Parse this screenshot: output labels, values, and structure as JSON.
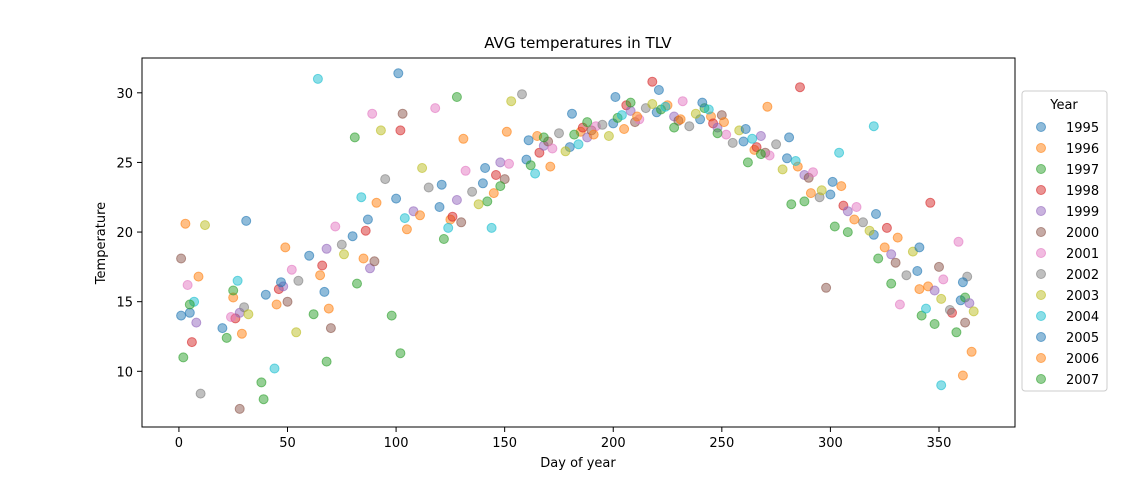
{
  "chart_data": {
    "type": "scatter",
    "title": "AVG temperatures in TLV",
    "xlabel": "Day of year",
    "ylabel": "Temperature",
    "xlim": [
      -17,
      385
    ],
    "ylim": [
      6,
      32.5
    ],
    "xticks": [
      0,
      50,
      100,
      150,
      200,
      250,
      300,
      350
    ],
    "yticks": [
      10,
      15,
      20,
      25,
      30
    ],
    "grid": false,
    "legend": {
      "title": "Year",
      "placement": "right"
    },
    "point_alpha": 0.5,
    "series": [
      {
        "name": "1995",
        "color": "#1f77b4",
        "points": [
          [
            5,
            14.2
          ],
          [
            20,
            13.1
          ],
          [
            40,
            15.5
          ],
          [
            60,
            18.3
          ],
          [
            80,
            19.7
          ],
          [
            100,
            22.4
          ],
          [
            120,
            21.8
          ],
          [
            140,
            23.5
          ],
          [
            160,
            25.2
          ],
          [
            180,
            26.1
          ],
          [
            200,
            27.8
          ],
          [
            220,
            28.6
          ],
          [
            240,
            28.1
          ],
          [
            260,
            26.5
          ],
          [
            280,
            25.3
          ],
          [
            300,
            22.7
          ],
          [
            320,
            19.8
          ],
          [
            340,
            17.2
          ],
          [
            360,
            15.1
          ]
        ]
      },
      {
        "name": "1996",
        "color": "#ff7f0e",
        "points": [
          [
            3,
            20.6
          ],
          [
            25,
            15.3
          ],
          [
            45,
            14.8
          ],
          [
            65,
            16.9
          ],
          [
            85,
            18.1
          ],
          [
            105,
            20.2
          ],
          [
            125,
            20.9
          ],
          [
            145,
            22.8
          ],
          [
            165,
            26.9
          ],
          [
            185,
            27.2
          ],
          [
            205,
            27.4
          ],
          [
            225,
            29.1
          ],
          [
            245,
            28.3
          ],
          [
            265,
            25.9
          ],
          [
            285,
            24.7
          ],
          [
            305,
            23.3
          ],
          [
            325,
            18.9
          ],
          [
            345,
            16.1
          ],
          [
            365,
            11.4
          ]
        ]
      },
      {
        "name": "1997",
        "color": "#2ca02c",
        "points": [
          [
            2,
            11.0
          ],
          [
            22,
            12.4
          ],
          [
            39,
            8.0
          ],
          [
            62,
            14.1
          ],
          [
            82,
            16.3
          ],
          [
            102,
            11.3
          ],
          [
            122,
            19.5
          ],
          [
            142,
            22.2
          ],
          [
            162,
            24.8
          ],
          [
            182,
            27.0
          ],
          [
            202,
            28.2
          ],
          [
            222,
            28.8
          ],
          [
            242,
            28.9
          ],
          [
            262,
            25.0
          ],
          [
            282,
            22.0
          ],
          [
            302,
            20.4
          ],
          [
            322,
            18.1
          ],
          [
            342,
            14.0
          ],
          [
            362,
            15.3
          ]
        ]
      },
      {
        "name": "1998",
        "color": "#d62728",
        "points": [
          [
            6,
            12.1
          ],
          [
            26,
            13.8
          ],
          [
            46,
            15.9
          ],
          [
            66,
            17.6
          ],
          [
            86,
            20.1
          ],
          [
            102,
            27.3
          ],
          [
            126,
            21.1
          ],
          [
            146,
            24.1
          ],
          [
            166,
            25.7
          ],
          [
            186,
            27.5
          ],
          [
            206,
            29.1
          ],
          [
            218,
            30.8
          ],
          [
            246,
            27.8
          ],
          [
            266,
            26.1
          ],
          [
            286,
            30.4
          ],
          [
            306,
            21.9
          ],
          [
            326,
            20.3
          ],
          [
            346,
            22.1
          ],
          [
            356,
            14.2
          ]
        ]
      },
      {
        "name": "1999",
        "color": "#9467bd",
        "points": [
          [
            8,
            13.5
          ],
          [
            28,
            14.2
          ],
          [
            48,
            16.1
          ],
          [
            68,
            18.8
          ],
          [
            88,
            17.4
          ],
          [
            108,
            21.5
          ],
          [
            128,
            22.3
          ],
          [
            148,
            25.0
          ],
          [
            168,
            26.2
          ],
          [
            188,
            26.8
          ],
          [
            208,
            28.7
          ],
          [
            228,
            28.3
          ],
          [
            248,
            27.5
          ],
          [
            268,
            26.9
          ],
          [
            288,
            24.1
          ],
          [
            308,
            21.5
          ],
          [
            328,
            18.4
          ],
          [
            348,
            15.8
          ],
          [
            364,
            14.9
          ]
        ]
      },
      {
        "name": "2000",
        "color": "#8c564b",
        "points": [
          [
            1,
            18.1
          ],
          [
            28,
            7.3
          ],
          [
            50,
            15.0
          ],
          [
            70,
            13.1
          ],
          [
            90,
            17.9
          ],
          [
            103,
            28.5
          ],
          [
            130,
            20.7
          ],
          [
            150,
            23.8
          ],
          [
            170,
            26.5
          ],
          [
            190,
            27.3
          ],
          [
            210,
            27.9
          ],
          [
            230,
            28.0
          ],
          [
            250,
            28.4
          ],
          [
            270,
            25.7
          ],
          [
            290,
            23.9
          ],
          [
            298,
            16.0
          ],
          [
            330,
            17.8
          ],
          [
            350,
            17.5
          ],
          [
            362,
            13.5
          ]
        ]
      },
      {
        "name": "2001",
        "color": "#e377c2",
        "points": [
          [
            4,
            16.2
          ],
          [
            24,
            13.9
          ],
          [
            52,
            17.3
          ],
          [
            72,
            20.4
          ],
          [
            89,
            28.5
          ],
          [
            118,
            28.9
          ],
          [
            132,
            24.4
          ],
          [
            152,
            24.9
          ],
          [
            172,
            26.0
          ],
          [
            192,
            27.6
          ],
          [
            212,
            28.1
          ],
          [
            232,
            29.4
          ],
          [
            252,
            27.0
          ],
          [
            272,
            25.5
          ],
          [
            292,
            24.3
          ],
          [
            312,
            21.8
          ],
          [
            332,
            14.8
          ],
          [
            352,
            16.6
          ],
          [
            359,
            19.3
          ]
        ]
      },
      {
        "name": "2002",
        "color": "#7f7f7f",
        "points": [
          [
            10,
            8.4
          ],
          [
            30,
            14.6
          ],
          [
            55,
            16.5
          ],
          [
            75,
            19.1
          ],
          [
            95,
            23.8
          ],
          [
            115,
            23.2
          ],
          [
            135,
            22.9
          ],
          [
            158,
            29.9
          ],
          [
            175,
            27.1
          ],
          [
            195,
            27.7
          ],
          [
            215,
            28.9
          ],
          [
            235,
            27.6
          ],
          [
            255,
            26.4
          ],
          [
            275,
            26.3
          ],
          [
            295,
            22.5
          ],
          [
            315,
            20.7
          ],
          [
            335,
            16.9
          ],
          [
            355,
            14.4
          ],
          [
            363,
            16.8
          ]
        ]
      },
      {
        "name": "2003",
        "color": "#bcbd22",
        "points": [
          [
            12,
            20.5
          ],
          [
            32,
            14.1
          ],
          [
            54,
            12.8
          ],
          [
            76,
            18.4
          ],
          [
            93,
            27.3
          ],
          [
            112,
            24.6
          ],
          [
            138,
            22.0
          ],
          [
            153,
            29.4
          ],
          [
            178,
            25.8
          ],
          [
            198,
            26.9
          ],
          [
            218,
            29.2
          ],
          [
            238,
            28.5
          ],
          [
            258,
            27.3
          ],
          [
            278,
            24.5
          ],
          [
            296,
            23.0
          ],
          [
            318,
            20.1
          ],
          [
            338,
            18.6
          ],
          [
            351,
            15.2
          ],
          [
            366,
            14.3
          ]
        ]
      },
      {
        "name": "2004",
        "color": "#17becf",
        "points": [
          [
            7,
            15.0
          ],
          [
            27,
            16.5
          ],
          [
            44,
            10.2
          ],
          [
            64,
            31.0
          ],
          [
            84,
            22.5
          ],
          [
            104,
            21.0
          ],
          [
            124,
            20.3
          ],
          [
            144,
            20.3
          ],
          [
            164,
            24.2
          ],
          [
            184,
            26.3
          ],
          [
            204,
            28.4
          ],
          [
            224,
            29.0
          ],
          [
            244,
            28.8
          ],
          [
            264,
            26.7
          ],
          [
            284,
            25.1
          ],
          [
            304,
            25.7
          ],
          [
            320,
            27.6
          ],
          [
            344,
            14.5
          ],
          [
            351,
            9.0
          ]
        ]
      },
      {
        "name": "2005",
        "color": "#1f77b4",
        "points": [
          [
            1,
            14.0
          ],
          [
            31,
            20.8
          ],
          [
            47,
            16.4
          ],
          [
            67,
            15.7
          ],
          [
            87,
            20.9
          ],
          [
            101,
            31.4
          ],
          [
            121,
            23.4
          ],
          [
            141,
            24.6
          ],
          [
            161,
            26.6
          ],
          [
            181,
            28.5
          ],
          [
            201,
            29.7
          ],
          [
            221,
            30.2
          ],
          [
            241,
            29.3
          ],
          [
            261,
            27.4
          ],
          [
            281,
            26.8
          ],
          [
            301,
            23.6
          ],
          [
            321,
            21.3
          ],
          [
            341,
            18.9
          ],
          [
            361,
            16.4
          ]
        ]
      },
      {
        "name": "2006",
        "color": "#ff7f0e",
        "points": [
          [
            9,
            16.8
          ],
          [
            29,
            12.7
          ],
          [
            49,
            18.9
          ],
          [
            69,
            14.5
          ],
          [
            91,
            22.1
          ],
          [
            111,
            21.2
          ],
          [
            131,
            26.7
          ],
          [
            151,
            27.2
          ],
          [
            171,
            24.7
          ],
          [
            191,
            27.0
          ],
          [
            211,
            28.3
          ],
          [
            231,
            28.1
          ],
          [
            251,
            27.9
          ],
          [
            271,
            29.0
          ],
          [
            291,
            22.8
          ],
          [
            311,
            20.9
          ],
          [
            331,
            19.6
          ],
          [
            341,
            15.9
          ],
          [
            361,
            9.7
          ]
        ]
      },
      {
        "name": "2007",
        "color": "#2ca02c",
        "points": [
          [
            5,
            14.8
          ],
          [
            25,
            15.8
          ],
          [
            38,
            9.2
          ],
          [
            68,
            10.7
          ],
          [
            81,
            26.8
          ],
          [
            98,
            14.0
          ],
          [
            128,
            29.7
          ],
          [
            148,
            23.3
          ],
          [
            168,
            26.8
          ],
          [
            188,
            27.9
          ],
          [
            208,
            29.3
          ],
          [
            228,
            27.5
          ],
          [
            248,
            27.1
          ],
          [
            268,
            25.6
          ],
          [
            288,
            22.2
          ],
          [
            308,
            20.0
          ],
          [
            328,
            16.3
          ],
          [
            348,
            13.4
          ],
          [
            358,
            12.8
          ]
        ]
      }
    ]
  }
}
